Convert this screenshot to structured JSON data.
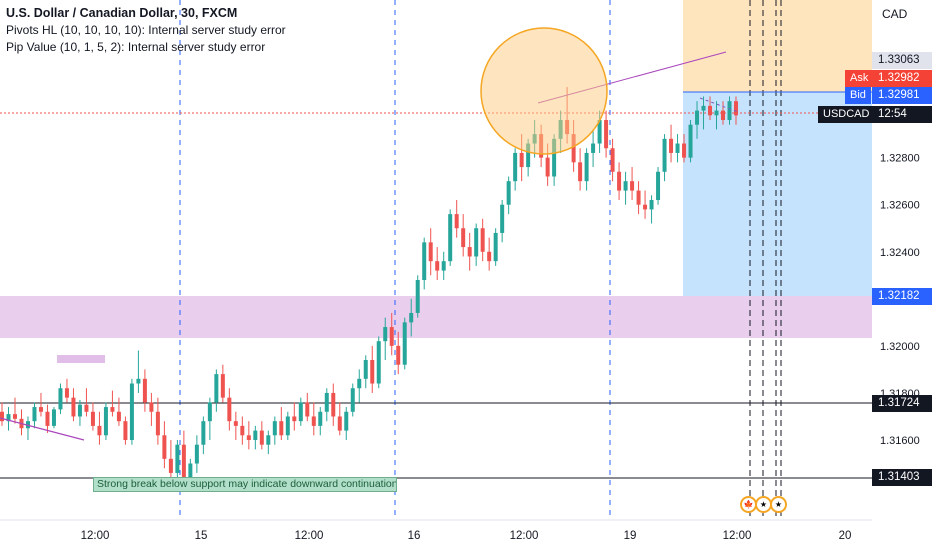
{
  "legend": {
    "title": "U.S. Dollar / Canadian Dollar, 30, FXCM",
    "line2": "Pivots HL (10, 10, 10, 10): Internal server study error",
    "line3": "Pip Value (10, 1, 5, 2): Internal server study error"
  },
  "currency": "CAD",
  "price_axis": {
    "ticks": [
      "1.32800",
      "1.32600",
      "1.32400",
      "1.32000",
      "1.31800",
      "1.31600"
    ],
    "tick_values": [
      1.328,
      1.326,
      1.324,
      1.32,
      1.318,
      1.316
    ],
    "range": [
      1.3126,
      1.3347
    ]
  },
  "tags": {
    "high": "1.33063",
    "ask_label": "Ask",
    "ask": "1.32982",
    "bid_label": "Bid",
    "bid": "1.32981",
    "symbol": "USDCAD",
    "countdown": "12:54",
    "stop": "1.32182",
    "support1": "1.31724",
    "support2": "1.31403"
  },
  "time_axis": [
    "12:00",
    "15",
    "12:00",
    "16",
    "12:00",
    "19",
    "12:00",
    "20"
  ],
  "annotation": "Strong break below support may indicate downward continuation",
  "colors": {
    "up": "#26a69a",
    "down": "#ef5350",
    "zone": "#e1bee7",
    "target": "#ffe0b2",
    "stoparea": "#bbdefb",
    "ask": "#f44336",
    "bid": "#2962ff",
    "line": "#131722"
  },
  "chart_data": {
    "type": "candlestick",
    "title": "U.S. Dollar / Canadian Dollar, 30, FXCM",
    "y_range": [
      1.3126,
      1.3347
    ],
    "candles": [
      [
        1.3172,
        1.3176,
        1.3166,
        1.3168
      ],
      [
        1.3168,
        1.3174,
        1.3164,
        1.3171
      ],
      [
        1.3171,
        1.3178,
        1.3167,
        1.3169
      ],
      [
        1.3169,
        1.3173,
        1.3162,
        1.3165
      ],
      [
        1.3165,
        1.317,
        1.316,
        1.3168
      ],
      [
        1.3168,
        1.3176,
        1.3165,
        1.3174
      ],
      [
        1.3174,
        1.318,
        1.317,
        1.3172
      ],
      [
        1.3172,
        1.3175,
        1.3163,
        1.3166
      ],
      [
        1.3166,
        1.3174,
        1.3165,
        1.3173
      ],
      [
        1.3173,
        1.3184,
        1.3171,
        1.3182
      ],
      [
        1.3182,
        1.3186,
        1.3176,
        1.3178
      ],
      [
        1.3178,
        1.3182,
        1.3168,
        1.317
      ],
      [
        1.317,
        1.3177,
        1.3166,
        1.3175
      ],
      [
        1.3175,
        1.3182,
        1.317,
        1.3172
      ],
      [
        1.3172,
        1.3176,
        1.3164,
        1.3166
      ],
      [
        1.3166,
        1.3172,
        1.3158,
        1.3162
      ],
      [
        1.3162,
        1.3176,
        1.316,
        1.3174
      ],
      [
        1.3174,
        1.3181,
        1.317,
        1.3172
      ],
      [
        1.3172,
        1.3178,
        1.3166,
        1.3168
      ],
      [
        1.3168,
        1.317,
        1.3158,
        1.316
      ],
      [
        1.316,
        1.3186,
        1.3158,
        1.3184
      ],
      [
        1.3184,
        1.3198,
        1.318,
        1.3186
      ],
      [
        1.3186,
        1.319,
        1.3172,
        1.3176
      ],
      [
        1.3176,
        1.318,
        1.3166,
        1.3172
      ],
      [
        1.3172,
        1.3178,
        1.3158,
        1.3162
      ],
      [
        1.3162,
        1.3168,
        1.3148,
        1.3152
      ],
      [
        1.3152,
        1.316,
        1.3142,
        1.3146
      ],
      [
        1.3146,
        1.316,
        1.3144,
        1.3158
      ],
      [
        1.3158,
        1.3164,
        1.314,
        1.3144
      ],
      [
        1.3144,
        1.3152,
        1.314,
        1.315
      ],
      [
        1.315,
        1.3162,
        1.3146,
        1.3158
      ],
      [
        1.3158,
        1.317,
        1.3154,
        1.3168
      ],
      [
        1.3168,
        1.3178,
        1.316,
        1.3176
      ],
      [
        1.3176,
        1.319,
        1.3172,
        1.3188
      ],
      [
        1.3188,
        1.3192,
        1.3176,
        1.3178
      ],
      [
        1.3178,
        1.3182,
        1.3164,
        1.3168
      ],
      [
        1.3168,
        1.3172,
        1.316,
        1.3166
      ],
      [
        1.3166,
        1.317,
        1.3158,
        1.3162
      ],
      [
        1.3162,
        1.3168,
        1.3156,
        1.316
      ],
      [
        1.316,
        1.3166,
        1.3156,
        1.3164
      ],
      [
        1.3164,
        1.3168,
        1.3156,
        1.3158
      ],
      [
        1.3158,
        1.3164,
        1.3154,
        1.3162
      ],
      [
        1.3162,
        1.317,
        1.3158,
        1.3168
      ],
      [
        1.3168,
        1.3174,
        1.316,
        1.3162
      ],
      [
        1.3162,
        1.3172,
        1.316,
        1.317
      ],
      [
        1.317,
        1.3176,
        1.3164,
        1.3168
      ],
      [
        1.3168,
        1.3178,
        1.3166,
        1.3176
      ],
      [
        1.3176,
        1.318,
        1.3168,
        1.317
      ],
      [
        1.317,
        1.3176,
        1.3162,
        1.3166
      ],
      [
        1.3166,
        1.3174,
        1.3162,
        1.3172
      ],
      [
        1.3172,
        1.3182,
        1.3168,
        1.318
      ],
      [
        1.318,
        1.3184,
        1.3166,
        1.317
      ],
      [
        1.317,
        1.3176,
        1.3162,
        1.3164
      ],
      [
        1.3164,
        1.3174,
        1.316,
        1.3172
      ],
      [
        1.3172,
        1.3184,
        1.317,
        1.3182
      ],
      [
        1.3182,
        1.319,
        1.3176,
        1.3186
      ],
      [
        1.3186,
        1.3196,
        1.3182,
        1.3194
      ],
      [
        1.3194,
        1.32,
        1.318,
        1.3184
      ],
      [
        1.3184,
        1.3204,
        1.3182,
        1.3202
      ],
      [
        1.3202,
        1.3212,
        1.3194,
        1.3208
      ],
      [
        1.3208,
        1.3214,
        1.3196,
        1.32
      ],
      [
        1.32,
        1.3206,
        1.3188,
        1.3192
      ],
      [
        1.3192,
        1.3212,
        1.319,
        1.321
      ],
      [
        1.321,
        1.322,
        1.3204,
        1.3214
      ],
      [
        1.3214,
        1.323,
        1.3212,
        1.3228
      ],
      [
        1.3228,
        1.3246,
        1.3224,
        1.3244
      ],
      [
        1.3244,
        1.325,
        1.323,
        1.3236
      ],
      [
        1.3236,
        1.3242,
        1.3228,
        1.3232
      ],
      [
        1.3232,
        1.324,
        1.3228,
        1.3236
      ],
      [
        1.3236,
        1.3258,
        1.3234,
        1.3256
      ],
      [
        1.3256,
        1.3262,
        1.3246,
        1.325
      ],
      [
        1.325,
        1.3256,
        1.3238,
        1.3242
      ],
      [
        1.3242,
        1.3248,
        1.3232,
        1.3238
      ],
      [
        1.3238,
        1.3252,
        1.3234,
        1.325
      ],
      [
        1.325,
        1.3254,
        1.3236,
        1.324
      ],
      [
        1.324,
        1.3246,
        1.3232,
        1.3236
      ],
      [
        1.3236,
        1.325,
        1.3234,
        1.3248
      ],
      [
        1.3248,
        1.3262,
        1.3244,
        1.326
      ],
      [
        1.326,
        1.3272,
        1.3256,
        1.327
      ],
      [
        1.327,
        1.3284,
        1.3266,
        1.3282
      ],
      [
        1.3282,
        1.329,
        1.327,
        1.3276
      ],
      [
        1.3276,
        1.3288,
        1.3272,
        1.3286
      ],
      [
        1.3286,
        1.3296,
        1.328,
        1.329
      ],
      [
        1.329,
        1.3294,
        1.3276,
        1.328
      ],
      [
        1.328,
        1.3286,
        1.3268,
        1.3272
      ],
      [
        1.3272,
        1.329,
        1.3268,
        1.3288
      ],
      [
        1.3288,
        1.33,
        1.3282,
        1.3296
      ],
      [
        1.3296,
        1.331,
        1.3286,
        1.329
      ],
      [
        1.329,
        1.3296,
        1.3274,
        1.3278
      ],
      [
        1.3278,
        1.3284,
        1.3266,
        1.327
      ],
      [
        1.327,
        1.3284,
        1.3266,
        1.3282
      ],
      [
        1.3282,
        1.3292,
        1.3276,
        1.3286
      ],
      [
        1.3286,
        1.33,
        1.3282,
        1.3296
      ],
      [
        1.3296,
        1.33,
        1.328,
        1.3284
      ],
      [
        1.3284,
        1.3288,
        1.327,
        1.3274
      ],
      [
        1.3274,
        1.3278,
        1.3262,
        1.3266
      ],
      [
        1.3266,
        1.3274,
        1.326,
        1.327
      ],
      [
        1.327,
        1.3276,
        1.3262,
        1.3266
      ],
      [
        1.3266,
        1.327,
        1.3256,
        1.326
      ],
      [
        1.326,
        1.3266,
        1.3254,
        1.3258
      ],
      [
        1.3258,
        1.3264,
        1.3252,
        1.3262
      ],
      [
        1.3262,
        1.3276,
        1.326,
        1.3274
      ],
      [
        1.3274,
        1.329,
        1.327,
        1.3288
      ],
      [
        1.3288,
        1.3294,
        1.3278,
        1.3282
      ],
      [
        1.3282,
        1.329,
        1.3278,
        1.3286
      ],
      [
        1.3286,
        1.329,
        1.3278,
        1.328
      ],
      [
        1.328,
        1.3296,
        1.3278,
        1.3294
      ],
      [
        1.3294,
        1.3304,
        1.3288,
        1.33
      ],
      [
        1.33,
        1.3306,
        1.3292,
        1.3302
      ],
      [
        1.3302,
        1.3306,
        1.3296,
        1.3298
      ],
      [
        1.3298,
        1.3304,
        1.3292,
        1.33
      ],
      [
        1.33,
        1.3304,
        1.3294,
        1.3296
      ],
      [
        1.3296,
        1.3306,
        1.3294,
        1.3304
      ],
      [
        1.3304,
        1.3306,
        1.3294,
        1.3298
      ]
    ]
  }
}
